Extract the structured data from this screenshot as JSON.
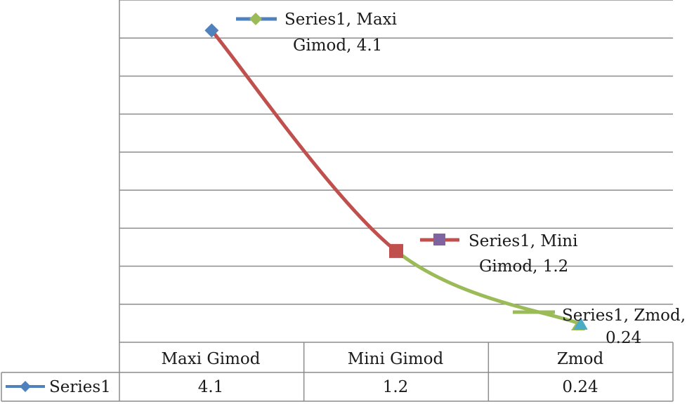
{
  "chart_data": {
    "type": "line",
    "categories": [
      "Maxi Gimod",
      "Mini Gimod",
      "Zmod"
    ],
    "series": [
      {
        "name": "Series1",
        "values": [
          4.1,
          1.2,
          0.24
        ]
      }
    ],
    "data_labels": [
      {
        "line1": "Series1, Maxi",
        "line2": "Gimod, 4.1"
      },
      {
        "line1": "Series1, Mini",
        "line2": "Gimod, 1.2"
      },
      {
        "line1": "Series1, Zmod,",
        "line2": "0.24"
      }
    ],
    "data_table": {
      "header": [
        "Maxi Gimod",
        "Mini Gimod",
        "Zmod"
      ],
      "row_label": "Series1",
      "row_values": [
        "4.1",
        "1.2",
        "0.24"
      ]
    },
    "ylim": [
      0,
      4.5
    ],
    "grid": true,
    "legend": "data-table",
    "colors": {
      "marker_1": "#4f81bd",
      "marker_2": "#c0504d",
      "marker_3": "#4bacc6",
      "segment_1": "#c0504d",
      "segment_2": "#9bbb59",
      "label_marker_1": "#9bbb59",
      "label_marker_2": "#8064a2",
      "label_marker_3": "#9bbb59",
      "legend_key": "#4f81bd",
      "grid": "#8c8c8c",
      "table_border": "#8c8c8c"
    }
  }
}
